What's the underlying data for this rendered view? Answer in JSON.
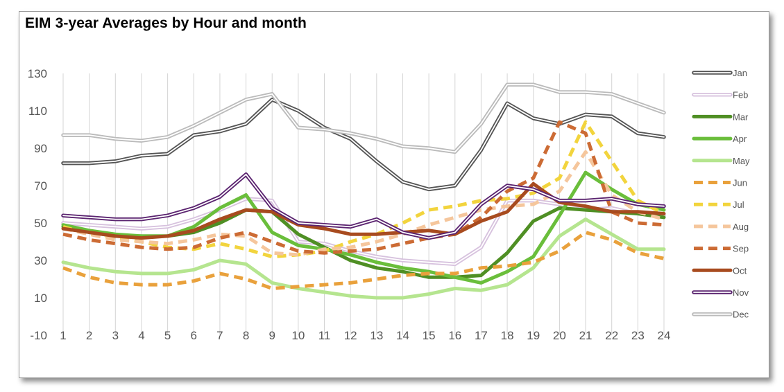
{
  "chart_data": {
    "type": "line",
    "title": "EIM 3-year Averages by Hour and month",
    "xlabel": "",
    "ylabel": "",
    "x": [
      1,
      2,
      3,
      4,
      5,
      6,
      7,
      8,
      9,
      10,
      11,
      12,
      13,
      14,
      15,
      16,
      17,
      18,
      19,
      20,
      21,
      22,
      23,
      24
    ],
    "ylim": [
      -10,
      130
    ],
    "yticks": [
      -10,
      10,
      30,
      50,
      70,
      90,
      110,
      130
    ],
    "grid": "vertical",
    "legend_position": "right",
    "series": [
      {
        "name": "Jan",
        "color": "#555555",
        "style": "double",
        "values": [
          82,
          82,
          83,
          86,
          87,
          97,
          99,
          103,
          116,
          110,
          101,
          95,
          83,
          72,
          68,
          70,
          89,
          114,
          106,
          103,
          108,
          107,
          98,
          96
        ]
      },
      {
        "name": "Feb",
        "color": "#d7c2de",
        "style": "double",
        "values": [
          50,
          49,
          48,
          47,
          48,
          52,
          57,
          63,
          62,
          40,
          39,
          35,
          32,
          30,
          29,
          28,
          37,
          62,
          62,
          60,
          57,
          58,
          55,
          54
        ]
      },
      {
        "name": "Mar",
        "color": "#4f8f24",
        "style": "solid",
        "values": [
          48,
          45,
          43,
          43,
          43,
          45,
          50,
          57,
          56,
          44,
          37,
          30,
          26,
          24,
          21,
          21,
          22,
          34,
          51,
          58,
          57,
          56,
          55,
          53
        ]
      },
      {
        "name": "Apr",
        "color": "#6abe3b",
        "style": "solid",
        "values": [
          49,
          46,
          44,
          43,
          43,
          48,
          58,
          65,
          45,
          38,
          36,
          33,
          29,
          26,
          24,
          21,
          18,
          24,
          32,
          54,
          77,
          68,
          60,
          57
        ]
      },
      {
        "name": "May",
        "color": "#b5e58f",
        "style": "solid",
        "values": [
          29,
          26,
          24,
          23,
          23,
          25,
          30,
          28,
          18,
          15,
          13,
          11,
          10,
          10,
          12,
          15,
          14,
          17,
          26,
          43,
          52,
          44,
          36,
          36
        ]
      },
      {
        "name": "Jun",
        "color": "#e9a13c",
        "style": "dashed",
        "values": [
          26,
          21,
          18,
          17,
          17,
          19,
          23,
          20,
          15,
          16,
          17,
          18,
          20,
          22,
          23,
          23,
          26,
          27,
          29,
          35,
          45,
          41,
          34,
          31
        ]
      },
      {
        "name": "Jul",
        "color": "#f2d43d",
        "style": "dashed",
        "values": [
          48,
          44,
          42,
          40,
          37,
          36,
          39,
          36,
          32,
          33,
          35,
          40,
          44,
          50,
          57,
          59,
          62,
          63,
          66,
          74,
          104,
          83,
          62,
          55
        ]
      },
      {
        "name": "Aug",
        "color": "#f5c69c",
        "style": "dashed",
        "values": [
          47,
          44,
          41,
          40,
          39,
          41,
          44,
          43,
          34,
          33,
          36,
          37,
          40,
          44,
          49,
          53,
          57,
          59,
          60,
          67,
          88,
          65,
          56,
          52
        ]
      },
      {
        "name": "Sep",
        "color": "#cc6b34",
        "style": "dashed",
        "values": [
          44,
          41,
          39,
          37,
          36,
          37,
          42,
          45,
          40,
          35,
          34,
          35,
          36,
          39,
          42,
          44,
          53,
          67,
          74,
          104,
          98,
          56,
          50,
          49
        ]
      },
      {
        "name": "Oct",
        "color": "#a84b1f",
        "style": "solid",
        "values": [
          47,
          45,
          43,
          42,
          43,
          46,
          52,
          57,
          56,
          49,
          47,
          44,
          44,
          45,
          46,
          44,
          51,
          56,
          71,
          61,
          59,
          56,
          56,
          55
        ]
      },
      {
        "name": "Nov",
        "color": "#5b2470",
        "style": "double",
        "values": [
          54,
          53,
          52,
          52,
          54,
          58,
          64,
          76,
          58,
          50,
          49,
          48,
          52,
          45,
          42,
          45,
          60,
          70,
          68,
          62,
          62,
          63,
          60,
          59
        ]
      },
      {
        "name": "Dec",
        "color": "#bbbbbb",
        "style": "double",
        "values": [
          97,
          97,
          95,
          94,
          96,
          102,
          109,
          116,
          119,
          101,
          100,
          98,
          95,
          91,
          90,
          88,
          103,
          124,
          124,
          120,
          120,
          119,
          114,
          109
        ]
      }
    ]
  }
}
